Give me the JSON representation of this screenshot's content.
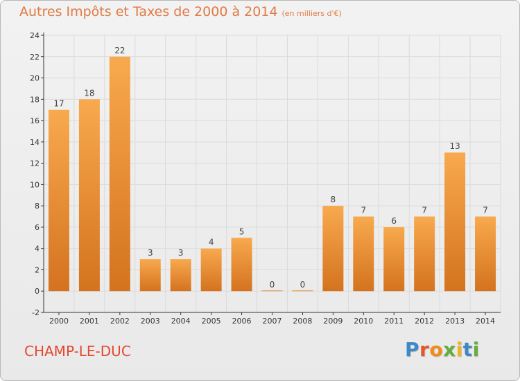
{
  "header": {
    "title": "Autres Impôts et Taxes de 2000 à 2014",
    "subtitle": "(en milliers d'€)"
  },
  "footer": {
    "commune": "CHAMP-LE-DUC",
    "logo_letters": [
      "P",
      "r",
      "o",
      "x",
      "i",
      "t",
      "i"
    ],
    "logo_colors": [
      "#3f88c8",
      "#e3572a",
      "#f08c1e",
      "#66ad3c",
      "#f2b31b",
      "#3f88c8",
      "#66ad3c"
    ]
  },
  "colors": {
    "bar_light": "#f8a94e",
    "bar_dark": "#d4731f",
    "title": "#e07a44",
    "commune": "#e4462f",
    "axis": "#333333",
    "grid": "#dadada"
  },
  "chart_data": {
    "type": "bar",
    "categories": [
      "2000",
      "2001",
      "2002",
      "2003",
      "2004",
      "2005",
      "2006",
      "2007",
      "2008",
      "2009",
      "2010",
      "2011",
      "2012",
      "2013",
      "2014"
    ],
    "values": [
      17,
      18,
      22,
      3,
      3,
      4,
      5,
      0,
      0,
      8,
      7,
      6,
      7,
      13,
      7
    ],
    "data_labels": [
      "17",
      "18",
      "22",
      "3",
      "3",
      "4",
      "5",
      "0",
      "0",
      "8",
      "7",
      "6",
      "7",
      "13",
      "7"
    ],
    "ylim": [
      -2,
      24
    ],
    "yticks": [
      -2,
      0,
      2,
      4,
      6,
      8,
      10,
      12,
      14,
      16,
      18,
      20,
      22,
      24
    ],
    "grid": true,
    "xlabel": "",
    "ylabel": ""
  }
}
